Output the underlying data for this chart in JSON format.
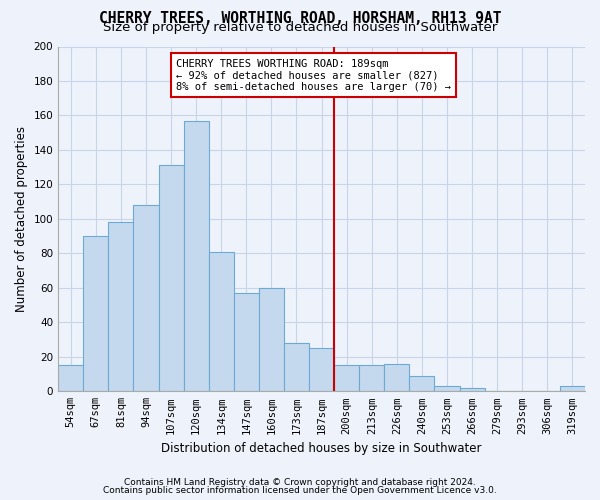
{
  "title1": "CHERRY TREES, WORTHING ROAD, HORSHAM, RH13 9AT",
  "title2": "Size of property relative to detached houses in Southwater",
  "xlabel": "Distribution of detached houses by size in Southwater",
  "ylabel": "Number of detached properties",
  "footnote1": "Contains HM Land Registry data © Crown copyright and database right 2024.",
  "footnote2": "Contains public sector information licensed under the Open Government Licence v3.0.",
  "categories": [
    "54sqm",
    "67sqm",
    "81sqm",
    "94sqm",
    "107sqm",
    "120sqm",
    "134sqm",
    "147sqm",
    "160sqm",
    "173sqm",
    "187sqm",
    "200sqm",
    "213sqm",
    "226sqm",
    "240sqm",
    "253sqm",
    "266sqm",
    "279sqm",
    "293sqm",
    "306sqm",
    "319sqm"
  ],
  "values": [
    15,
    90,
    98,
    108,
    131,
    157,
    81,
    57,
    60,
    28,
    25,
    15,
    15,
    16,
    9,
    3,
    2,
    0,
    0,
    0,
    3
  ],
  "bar_color": "#c5d9ee",
  "bar_edge_color": "#6aaad4",
  "grid_color": "#c8d4e8",
  "vline_x_index": 10.5,
  "vline_color": "#cc0000",
  "annotation_text": "CHERRY TREES WORTHING ROAD: 189sqm\n← 92% of detached houses are smaller (827)\n8% of semi-detached houses are larger (70) →",
  "annotation_box_color": "white",
  "annotation_box_edge_color": "#cc0000",
  "ylim": [
    0,
    200
  ],
  "yticks": [
    0,
    20,
    40,
    60,
    80,
    100,
    120,
    140,
    160,
    180,
    200
  ],
  "bg_color": "#eef2fa",
  "title_fontsize": 10.5,
  "subtitle_fontsize": 9.5,
  "axis_label_fontsize": 8.5,
  "tick_fontsize": 7.5,
  "footnote_fontsize": 6.5
}
